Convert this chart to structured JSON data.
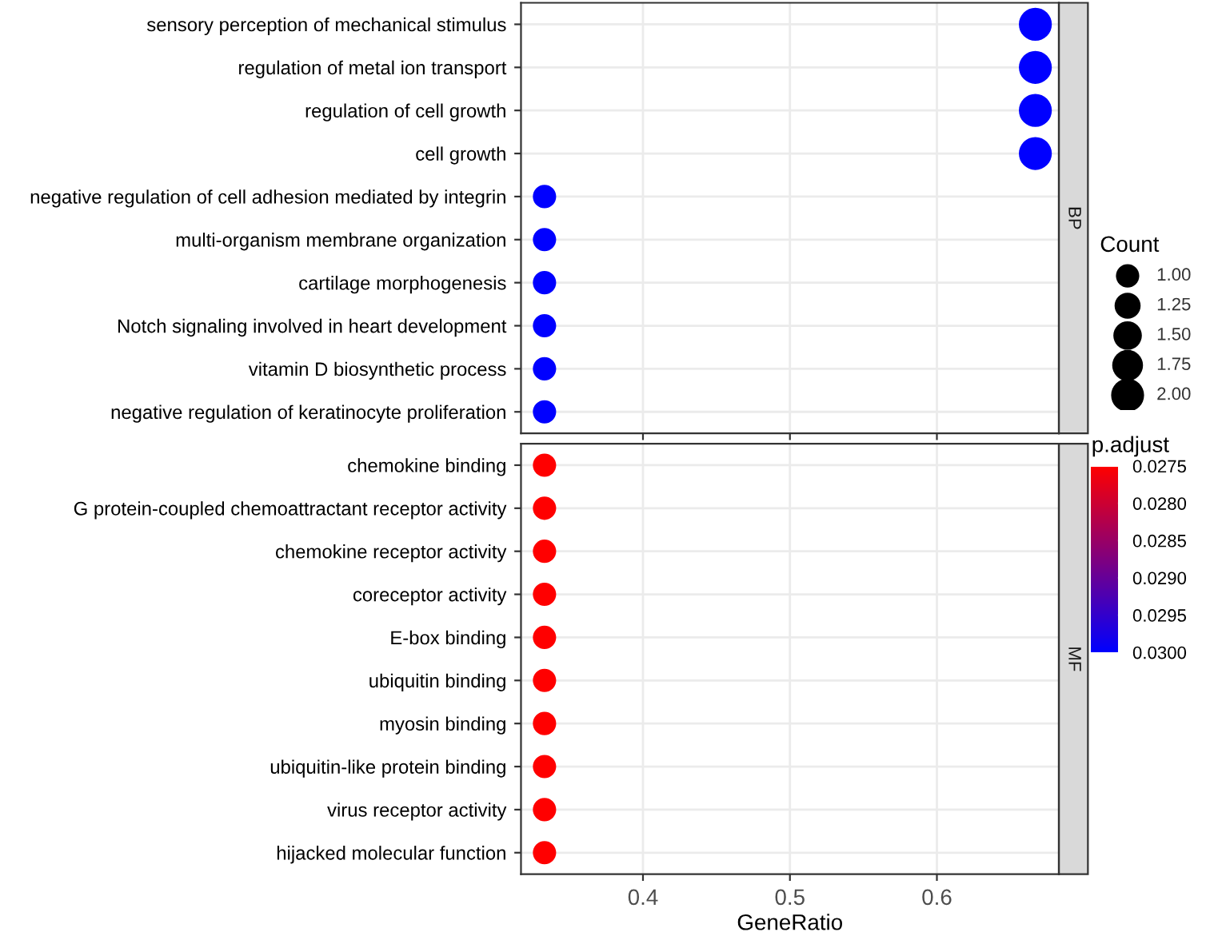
{
  "chart_data": [
    {
      "type": "bubble",
      "annotations": [
        "BP"
      ],
      "orientation": "horizontal",
      "categories": [
        "sensory perception of mechanical stimulus",
        "regulation of metal ion transport",
        "regulation of cell growth",
        "cell growth",
        "negative regulation of cell adhesion mediated by integrin",
        "multi-organism membrane organization",
        "cartilage morphogenesis",
        "Notch signaling involved in heart development",
        "vitamin D biosynthetic process",
        "negative regulation of keratinocyte proliferation"
      ],
      "values": [
        0.667,
        0.667,
        0.667,
        0.667,
        0.333,
        0.333,
        0.333,
        0.333,
        0.333,
        0.333
      ],
      "sizes": [
        2,
        2,
        2,
        2,
        1,
        1,
        1,
        1,
        1,
        1
      ],
      "colors": [
        "#0000ff",
        "#0000ff",
        "#0000ff",
        "#0000ff",
        "#0000ff",
        "#0000ff",
        "#0000ff",
        "#0000ff",
        "#0000ff",
        "#0000ff"
      ],
      "legend_title": "Count",
      "size_legend": [
        {
          "value": 1.0,
          "label": "1.00"
        },
        {
          "value": 1.25,
          "label": "1.25"
        },
        {
          "value": 1.5,
          "label": "1.50"
        },
        {
          "value": 1.75,
          "label": "1.75"
        },
        {
          "value": 2.0,
          "label": "2.00"
        }
      ],
      "xlim": [
        0.317,
        0.683
      ],
      "xticks": [
        0.4,
        0.5,
        0.6
      ],
      "tick_labels": "y",
      "grid": true
    },
    {
      "type": "bubble",
      "annotations": [
        "MF"
      ],
      "orientation": "horizontal",
      "categories": [
        "chemokine binding",
        "G protein-coupled chemoattractant receptor activity",
        "chemokine receptor activity",
        "coreceptor activity",
        "E-box binding",
        "ubiquitin binding",
        "myosin binding",
        "ubiquitin-like protein binding",
        "virus receptor activity",
        "hijacked molecular function"
      ],
      "values": [
        0.333,
        0.333,
        0.333,
        0.333,
        0.333,
        0.333,
        0.333,
        0.333,
        0.333,
        0.333
      ],
      "sizes": [
        1,
        1,
        1,
        1,
        1,
        1,
        1,
        1,
        1,
        1
      ],
      "cvalues": [
        0.0275,
        0.0275,
        0.0275,
        0.0275,
        0.0275,
        0.0275,
        0.0275,
        0.0275,
        0.0275,
        0.0275
      ],
      "clim": [
        0.03,
        0.0275
      ],
      "clabel": "p.adjust",
      "cticks": [
        0.0275,
        {
          "value": 0.028,
          "label": "0.0280"
        },
        0.0285,
        {
          "value": 0.029,
          "label": "0.0290"
        },
        0.0295,
        {
          "value": 0.03,
          "label": "0.0300"
        }
      ],
      "xlabel": "GeneRatio",
      "xlim": [
        0.317,
        0.683
      ],
      "xticks": [
        0.4,
        0.5,
        0.6
      ],
      "grid": true
    }
  ]
}
